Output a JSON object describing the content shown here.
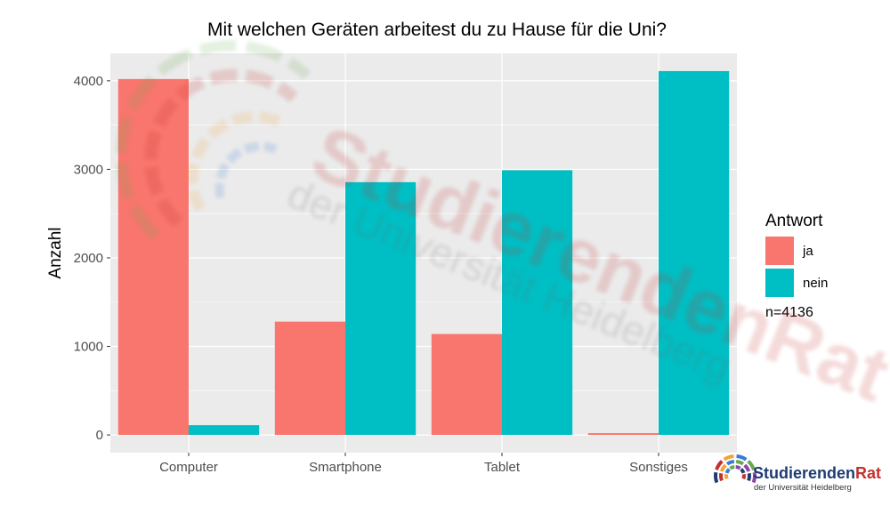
{
  "chart_data": {
    "type": "bar",
    "title": "Mit welchen Geräten arbeitest du zu Hause für die Uni?",
    "xlabel": "",
    "ylabel": "Anzahl",
    "categories": [
      "Computer",
      "Smartphone",
      "Tablet",
      "Sonstiges"
    ],
    "series": [
      {
        "name": "ja",
        "color": "#F8766D",
        "values": [
          4020,
          1280,
          1140,
          20
        ]
      },
      {
        "name": "nein",
        "color": "#00BFC4",
        "values": [
          110,
          2855,
          2990,
          4110
        ]
      }
    ],
    "ylim": [
      -200,
      4310
    ],
    "yticks": [
      0,
      1000,
      2000,
      3000,
      4000
    ],
    "grid": true,
    "panel_background": "#EBEBEB",
    "legend": {
      "title": "Antwort",
      "placement": "right"
    },
    "note": "n=4136"
  },
  "watermark": {
    "line1": "StudierendenRat",
    "line2": "der Universität Heidelberg"
  },
  "logo": {
    "name_part1": "Studierenden",
    "name_part2": "Rat",
    "subtitle": "der Universität Heidelberg",
    "colors": [
      "#1f3b73",
      "#c4312f",
      "#f2a33a",
      "#3a7bd5",
      "#6aa84f",
      "#8e44ad"
    ]
  }
}
